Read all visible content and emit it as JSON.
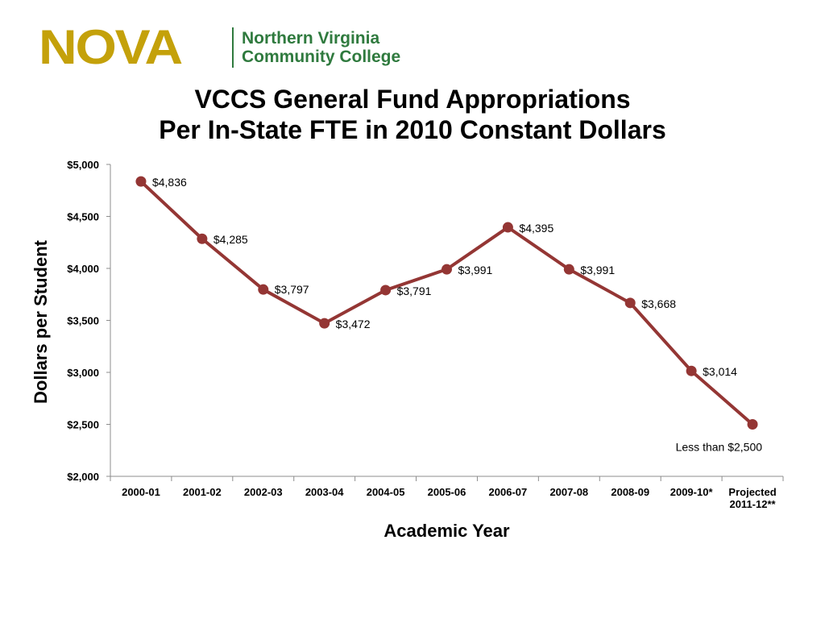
{
  "logo": {
    "mark": "NOVA",
    "name_line1": "Northern Virginia",
    "name_line2": "Community College",
    "mark_color": "#c4a10a",
    "name_color": "#2f7a3e"
  },
  "title": {
    "line1": "VCCS General Fund Appropriations",
    "line2": "Per In-State FTE in 2010 Constant Dollars"
  },
  "chart_data": {
    "type": "line",
    "categories": [
      "2000-01",
      "2001-02",
      "2002-03",
      "2003-04",
      "2004-05",
      "2005-06",
      "2006-07",
      "2007-08",
      "2008-09",
      "2009-10*",
      "Projected 2011-12**"
    ],
    "series": [
      {
        "values": [
          4836,
          4285,
          3797,
          3472,
          3791,
          3991,
          4395,
          3991,
          3668,
          3014,
          2500
        ],
        "color": "#943634"
      }
    ],
    "data_labels": [
      "$4,836",
      "$4,285",
      "$3,797",
      "$3,472",
      "$3,791",
      "$3,991",
      "$4,395",
      "$3,991",
      "$3,668",
      "$3,014",
      "Less than $2,500"
    ],
    "y_tick_labels": [
      "$2,000",
      "$2,500",
      "$3,000",
      "$3,500",
      "$4,000",
      "$4,500",
      "$5,000"
    ],
    "xlabel": "Academic Year",
    "ylabel": "Dollars per Student",
    "ylim": [
      2000,
      5000
    ],
    "grid": false,
    "legend": "none"
  }
}
